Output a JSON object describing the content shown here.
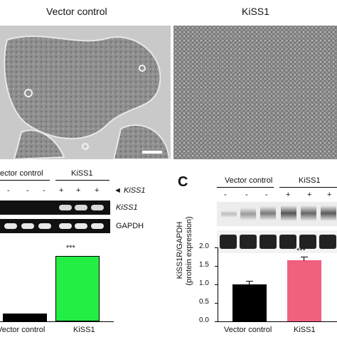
{
  "figure": {
    "top_labels": {
      "left": "Vector control",
      "right": "KiSS1"
    },
    "scale_bar_label": "",
    "panel_b": {
      "group_left": "ector control",
      "group_right": "KiSS1",
      "lanes_left": [
        "-",
        "-",
        "-"
      ],
      "lanes_right": [
        "+",
        "+",
        "+"
      ],
      "marker": "◄ KiSS1",
      "row_labels": [
        "KiSS1",
        "GAPDH"
      ],
      "sig": "***",
      "x_labels": [
        "Vector control",
        "KiSS1"
      ]
    },
    "panel_c": {
      "letter": "C",
      "group_left": "Vector control",
      "group_right": "KiSS1",
      "lanes_left": [
        "-",
        "-",
        "-"
      ],
      "lanes_right": [
        "+",
        "+",
        "+"
      ],
      "ylabel_line1": "KiSS1R/GAPDH",
      "ylabel_line2": "(protein expression)",
      "yticks": [
        "0.0",
        "0.5",
        "1.0",
        "1.5",
        "2.0"
      ],
      "sig": "***",
      "x_labels": [
        "Vector control",
        "KiSS1"
      ]
    }
  },
  "chart_data": [
    {
      "type": "bar",
      "categories": [
        "Vector control",
        "KiSS1"
      ],
      "values": [
        0.12,
        1.0
      ],
      "colors": [
        "#000000",
        "#22ee44"
      ],
      "annotation": "***"
    },
    {
      "type": "bar",
      "categories": [
        "Vector control",
        "KiSS1"
      ],
      "values": [
        1.0,
        1.65
      ],
      "colors": [
        "#000000",
        "#f0607f"
      ],
      "ylabel": "KiSS1R/GAPDH (protein expression)",
      "ylim": [
        0,
        2.0
      ],
      "annotation": "***"
    }
  ]
}
